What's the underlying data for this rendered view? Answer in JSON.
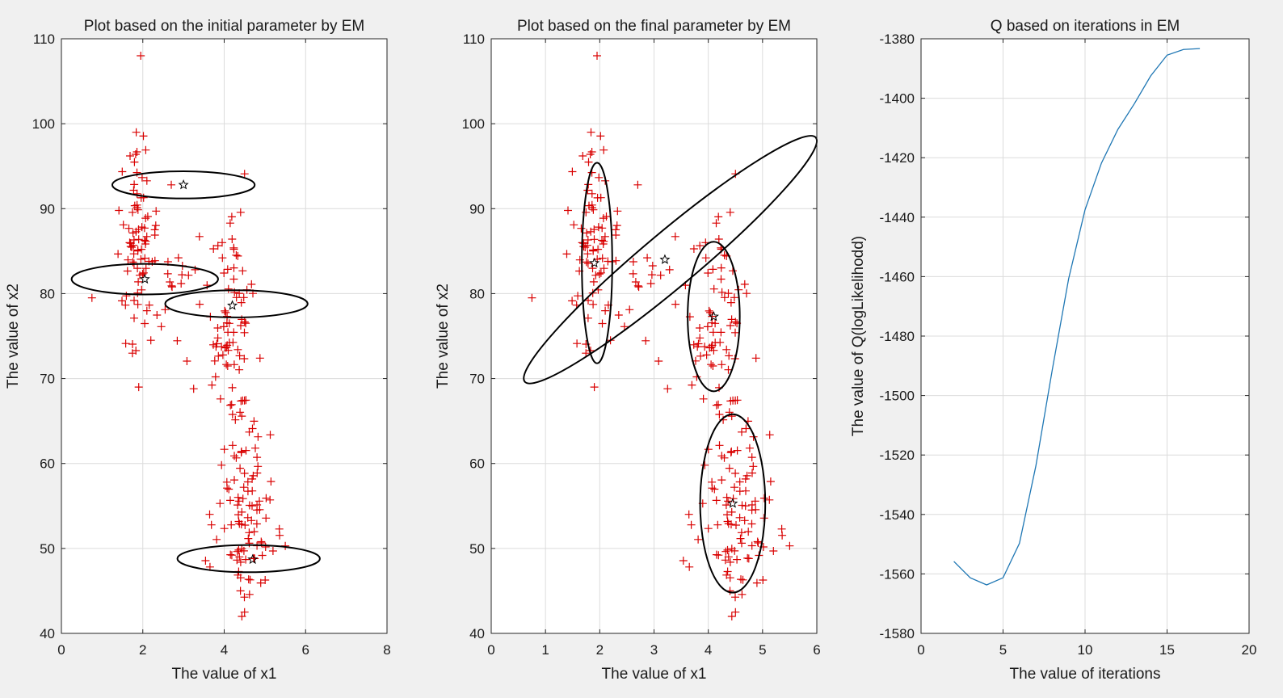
{
  "colors": {
    "figure_bg": "#f0f0f0",
    "axes_bg": "#ffffff",
    "grid": "#dcdcdc",
    "axis": "#262626",
    "text": "#1a1a1a",
    "points": "#d90000",
    "ellipse": "#000000",
    "center_star": "#000000",
    "line": "#1f77b4"
  },
  "chart_data": [
    {
      "type": "scatter",
      "title": "Plot based on the initial parameter by EM",
      "xlabel": "The value of x1",
      "ylabel": "The value of x2",
      "xlim": [
        0,
        8
      ],
      "ylim": [
        40,
        110
      ],
      "xticks": [
        0,
        2,
        4,
        6,
        8
      ],
      "yticks": [
        40,
        50,
        60,
        70,
        80,
        90,
        100,
        110
      ],
      "grid": true,
      "marker": "+",
      "ellipses": [
        {
          "cx": 3.0,
          "cy": 92.8,
          "rx": 1.75,
          "ry": 1.6
        },
        {
          "cx": 2.05,
          "cy": 81.7,
          "rx": 1.8,
          "ry": 1.8
        },
        {
          "cx": 4.3,
          "cy": 78.8,
          "rx": 1.75,
          "ry": 1.6
        },
        {
          "cx": 4.6,
          "cy": 48.8,
          "rx": 1.75,
          "ry": 1.6
        }
      ],
      "centers": [
        [
          3.0,
          92.8
        ],
        [
          2.05,
          81.7
        ],
        [
          4.2,
          78.6
        ],
        [
          4.7,
          48.7
        ]
      ]
    },
    {
      "type": "scatter",
      "title": "Plot based on the final parameter by EM",
      "xlabel": "The value of x1",
      "ylabel": "The value of x2",
      "xlim": [
        0,
        6
      ],
      "ylim": [
        40,
        110
      ],
      "xticks": [
        0,
        1,
        2,
        3,
        4,
        5,
        6
      ],
      "yticks": [
        40,
        50,
        60,
        70,
        80,
        90,
        100,
        110
      ],
      "grid": true,
      "marker": "+",
      "ellipses": [
        {
          "cx": 1.95,
          "cy": 83.6,
          "rx": 0.28,
          "ry": 11.8,
          "rot": 0
        },
        {
          "cx": 3.3,
          "cy": 84.0,
          "rx": 3.5,
          "ry": 3.2,
          "rot": -40
        },
        {
          "cx": 4.1,
          "cy": 77.3,
          "rx": 0.48,
          "ry": 8.8,
          "rot": 0
        },
        {
          "cx": 4.45,
          "cy": 55.3,
          "rx": 0.6,
          "ry": 10.5,
          "rot": 0
        }
      ],
      "centers": [
        [
          1.9,
          83.6
        ],
        [
          3.2,
          84.0
        ],
        [
          4.1,
          77.3
        ],
        [
          4.45,
          55.3
        ]
      ]
    },
    {
      "type": "line",
      "title": "Q based on iterations in EM",
      "xlabel": "The value of iterations",
      "ylabel": "The value of Q(logLikelihodd)",
      "xlim": [
        0,
        20
      ],
      "ylim": [
        -1580,
        -1380
      ],
      "xticks": [
        0,
        5,
        10,
        15,
        20
      ],
      "yticks": [
        -1580,
        -1560,
        -1540,
        -1520,
        -1500,
        -1480,
        -1460,
        -1440,
        -1420,
        -1400,
        -1380
      ],
      "grid": true,
      "series": [
        {
          "x": [
            2,
            3,
            4,
            5,
            6,
            7,
            8,
            9,
            10,
            11,
            12,
            13,
            14,
            15,
            16,
            17
          ],
          "y": [
            -1555.8,
            -1561.3,
            -1563.7,
            -1561.3,
            -1549.7,
            -1523.7,
            -1491.4,
            -1460.7,
            -1437.5,
            -1421.8,
            -1410.5,
            -1401.9,
            -1392.5,
            -1385.5,
            -1383.6,
            -1383.3
          ]
        }
      ]
    }
  ]
}
